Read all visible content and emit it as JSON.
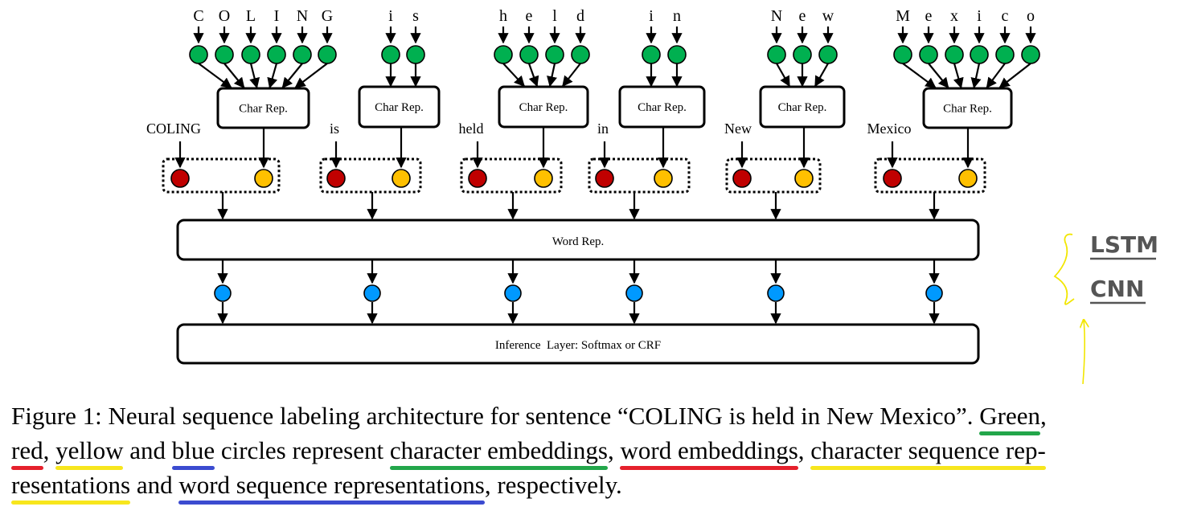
{
  "words": [
    {
      "word": "COLING",
      "chars": [
        "C",
        "O",
        "L",
        "I",
        "N",
        "G"
      ]
    },
    {
      "word": "is",
      "chars": [
        "i",
        "s"
      ]
    },
    {
      "word": "held",
      "chars": [
        "h",
        "e",
        "l",
        "d"
      ]
    },
    {
      "word": "in",
      "chars": [
        "i",
        "n"
      ]
    },
    {
      "word": "New",
      "chars": [
        "N",
        "e",
        "w"
      ]
    },
    {
      "word": "Mexico",
      "chars": [
        "M",
        "e",
        "x",
        "i",
        "c",
        "o"
      ]
    }
  ],
  "char_rep_label": "Char Rep.",
  "word_rep_label": "Word Rep.",
  "inference_label": "Inference  Layer: Softmax or CRF",
  "annotation": {
    "lstm": "LSTM",
    "cnn": "CNN"
  },
  "colors": {
    "char_embedding": "#00b050",
    "word_embedding": "#c00000",
    "char_seq_rep": "#ffc000",
    "word_seq_rep": "#0099ff",
    "annotation": "#ffff00"
  },
  "caption": {
    "l1_a": "Figure 1: Neural sequence labeling architecture for sentence “COLING is held in New Mexico”. ",
    "green": "Green",
    "l1_b": ",",
    "red": "red",
    "comma1": ", ",
    "yellow": "yellow",
    "and1": " and ",
    "blue": "blue",
    "l2_a": " circles represent ",
    "char_emb": "character embeddings",
    "comma2": ", ",
    "word_emb": "word embeddings",
    "comma3": ", ",
    "char_seq": "character sequence rep-",
    "l3_char_seq": "resentations",
    "and2": " and ",
    "word_seq": "word sequence representations",
    "l3_end": ", respectively."
  }
}
